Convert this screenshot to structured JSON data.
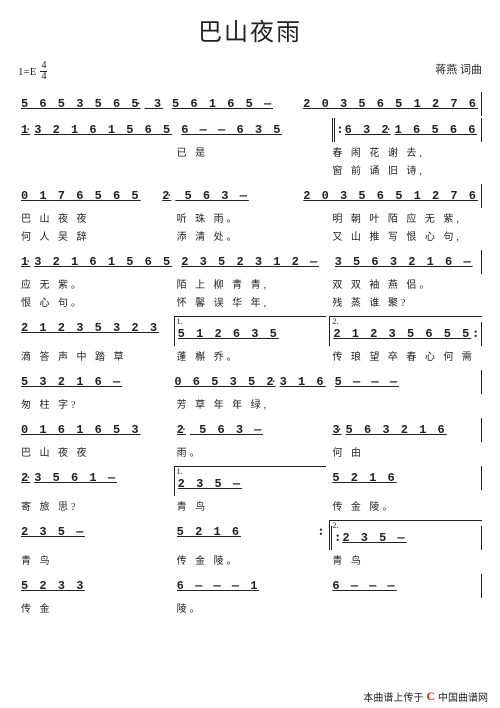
{
  "title": "巴山夜雨",
  "key": "1=E",
  "timesig": {
    "num": "4",
    "den": "4"
  },
  "composer": "蒋燕  词曲",
  "lines": [
    {
      "bars": [
        {
          "notes": "5 6 5 3 5 6 5. 3"
        },
        {
          "notes": "5 6 i  6 5  —"
        },
        {
          "notes": "2 0 3 5 6 5  1 2 7 6"
        }
      ]
    },
    {
      "bars": [
        {
          "notes": "1.3 2 1 6 1  5 6 5"
        },
        {
          "notes": "6  —  — 6 3 5",
          "tie": true
        },
        {
          "notes": "6 3 2.i 6 5 6  6",
          "rpts": true
        }
      ],
      "lyrics": [
        "",
        "          已 是",
        "春 闹 花 谢  去,"
      ],
      "lyrics2": [
        "",
        "",
        "窗 前 诵 旧  诗,"
      ]
    },
    {
      "bars": [
        {
          "notes": "0  i  7 6  5 6 5"
        },
        {
          "notes": "2.  5  6 3  —"
        },
        {
          "notes": "2 0 3 5 6 5  1 2 7 6"
        }
      ],
      "lyrics": [
        "   巴  山  夜 夜",
        "听   珠  雨。",
        "明 朝 叶 陌 应 无  紫,"
      ],
      "lyrics2": [
        "   何  人  吴 辞",
        "添   清  处。",
        "又 山 推 写 恨 心  句,"
      ]
    },
    {
      "bars": [
        {
          "notes": "1.3 2 1 6 1 5 6 5"
        },
        {
          "notes": "2 3 5  2 3 1 2  —"
        },
        {
          "notes": "3 5 6 3  2 i 6  —"
        }
      ],
      "lyrics": [
        "应 无    紫。",
        "陌 上 柳 青 青,",
        "双 双 袖 燕  侣。"
      ],
      "lyrics2": [
        "恨 心    句。",
        "怀 馨 误 华 年,",
        "残 蒸 谁 聚?"
      ]
    },
    {
      "bars": [
        {
          "notes": "2 1 2 3  5 3 2  3"
        },
        {
          "notes": "5  1 2  6 3 5",
          "volta": "1."
        },
        {
          "notes": "2 1 2 3  5 6 5  5",
          "rpte": true,
          "volta": "2."
        }
      ],
      "lyrics": [
        "滴 答 声 中 踏 草",
        "蓬   槲  乔。",
        "传 琅 望 卒 春 心 何 需"
      ],
      "lyrics2": [
        "",
        "",
        ""
      ]
    },
    {
      "bars": [
        {
          "notes": "5 3 2 i  6  —"
        },
        {
          "notes": "0 6 5  3 5  2.3 1 6"
        },
        {
          "notes": "5  —  —  —"
        }
      ],
      "lyrics": [
        "匆 柱    字?",
        "芳 草 年 年  绿,",
        ""
      ],
      "lyrics2": [
        "",
        "",
        ""
      ]
    },
    {
      "bars": [
        {
          "notes": "0  i  6 i  6  5 3"
        },
        {
          "notes": "2.  5  6 3  —"
        },
        {
          "notes": "3.5 6 3   2 i 6"
        }
      ],
      "lyrics": [
        "   巴  山  夜 夜",
        "雨。",
        "     何   由"
      ],
      "lyrics2": [
        "",
        "",
        ""
      ]
    },
    {
      "bars": [
        {
          "notes": "2.3  5 6   1  —"
        },
        {
          "notes": "2  3   5  —",
          "volta": "1."
        },
        {
          "notes": "5   2   1  6"
        }
      ],
      "lyrics": [
        "寄   旅    思?",
        "青     鸟",
        "传   金     陵。"
      ],
      "lyrics2": [
        "",
        "",
        ""
      ]
    },
    {
      "bars": [
        {
          "notes": "2   3   5  —"
        },
        {
          "notes": "5   2   1  6",
          "rpte": true
        },
        {
          "notes": "2   3   5  —",
          "volta": "2.",
          "rpts": true
        }
      ],
      "lyrics": [
        "青       鸟",
        "传   金     陵。",
        "青        鸟"
      ],
      "lyrics2": [
        "",
        "",
        ""
      ]
    },
    {
      "bars": [
        {
          "notes": "5   2   3  3"
        },
        {
          "notes": "6  —  —  — 1"
        },
        {
          "notes": "6  —  —  —",
          "end": true
        }
      ],
      "lyrics": [
        "传   金",
        "陵。",
        ""
      ],
      "lyrics2": [
        "",
        "",
        ""
      ]
    }
  ],
  "footer": {
    "text": "本曲谱上传于",
    "site": "中国曲谱网",
    "logo": "C"
  }
}
